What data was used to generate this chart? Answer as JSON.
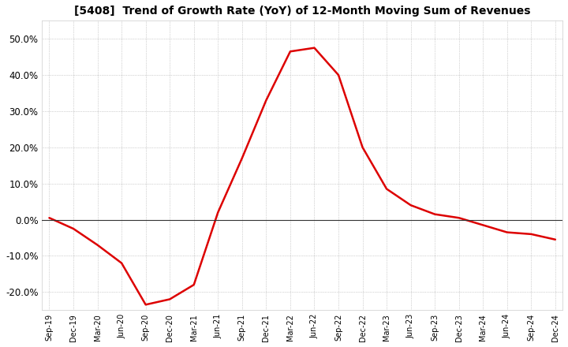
{
  "title": "[5408]  Trend of Growth Rate (YoY) of 12-Month Moving Sum of Revenues",
  "title_fontsize": 10,
  "line_color": "#dd0000",
  "background_color": "#ffffff",
  "grid_color": "#aaaaaa",
  "ylim": [
    -25,
    55
  ],
  "yticks": [
    -20.0,
    -10.0,
    0.0,
    10.0,
    20.0,
    30.0,
    40.0,
    50.0
  ],
  "data_points": [
    [
      "Sep-19",
      0.5
    ],
    [
      "Dec-19",
      -2.5
    ],
    [
      "Mar-20",
      -7.0
    ],
    [
      "Jun-20",
      -12.0
    ],
    [
      "Sep-20",
      -23.5
    ],
    [
      "Dec-20",
      -22.0
    ],
    [
      "Mar-21",
      -18.0
    ],
    [
      "Jun-21",
      2.0
    ],
    [
      "Sep-21",
      17.0
    ],
    [
      "Dec-21",
      33.0
    ],
    [
      "Mar-22",
      46.5
    ],
    [
      "Jun-22",
      47.5
    ],
    [
      "Sep-22",
      40.0
    ],
    [
      "Dec-22",
      20.0
    ],
    [
      "Mar-23",
      8.5
    ],
    [
      "Jun-23",
      4.0
    ],
    [
      "Sep-23",
      1.5
    ],
    [
      "Dec-23",
      0.5
    ],
    [
      "Mar-24",
      -1.5
    ],
    [
      "Jun-24",
      -3.5
    ],
    [
      "Sep-24",
      -4.0
    ],
    [
      "Dec-24",
      -5.5
    ]
  ]
}
